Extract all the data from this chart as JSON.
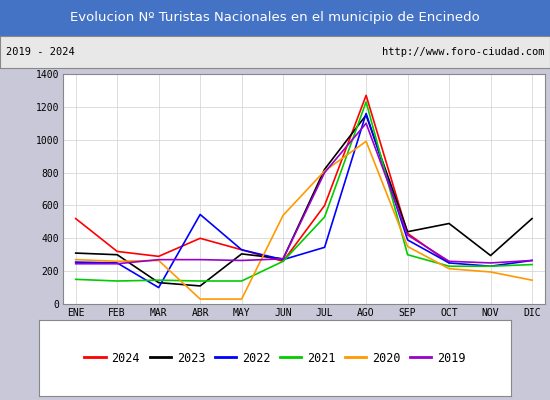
{
  "title": "Evolucion Nº Turistas Nacionales en el municipio de Encinedo",
  "subtitle_left": "2019 - 2024",
  "subtitle_right": "http://www.foro-ciudad.com",
  "title_bg_color": "#4472c4",
  "title_text_color": "#ffffff",
  "months": [
    "ENE",
    "FEB",
    "MAR",
    "ABR",
    "MAY",
    "JUN",
    "JUL",
    "AGO",
    "SEP",
    "OCT",
    "NOV",
    "DIC"
  ],
  "ylim": [
    0,
    1400
  ],
  "yticks": [
    0,
    200,
    400,
    600,
    800,
    1000,
    1200,
    1400
  ],
  "series": {
    "2024": {
      "color": "#ff0000",
      "data": [
        520,
        320,
        290,
        400,
        330,
        260,
        600,
        1270,
        430,
        250,
        null,
        null
      ]
    },
    "2023": {
      "color": "#000000",
      "data": [
        310,
        300,
        130,
        110,
        305,
        275,
        820,
        1150,
        440,
        490,
        295,
        520
      ]
    },
    "2022": {
      "color": "#0000ff",
      "data": [
        255,
        250,
        100,
        545,
        330,
        270,
        345,
        1160,
        390,
        250,
        230,
        265
      ]
    },
    "2021": {
      "color": "#00cc00",
      "data": [
        150,
        140,
        145,
        140,
        140,
        260,
        530,
        1230,
        300,
        230,
        230,
        240
      ]
    },
    "2020": {
      "color": "#ff9900",
      "data": [
        270,
        260,
        265,
        30,
        30,
        540,
        810,
        990,
        350,
        215,
        195,
        145
      ]
    },
    "2019": {
      "color": "#9900cc",
      "data": [
        245,
        245,
        270,
        270,
        265,
        275,
        800,
        1100,
        420,
        260,
        250,
        265
      ]
    }
  },
  "legend_order": [
    "2024",
    "2023",
    "2022",
    "2021",
    "2020",
    "2019"
  ],
  "bg_color": "#e8e8e8",
  "plot_bg_color": "#ffffff",
  "grid_color": "#d0d0d0",
  "outer_bg": "#c8c8d8"
}
